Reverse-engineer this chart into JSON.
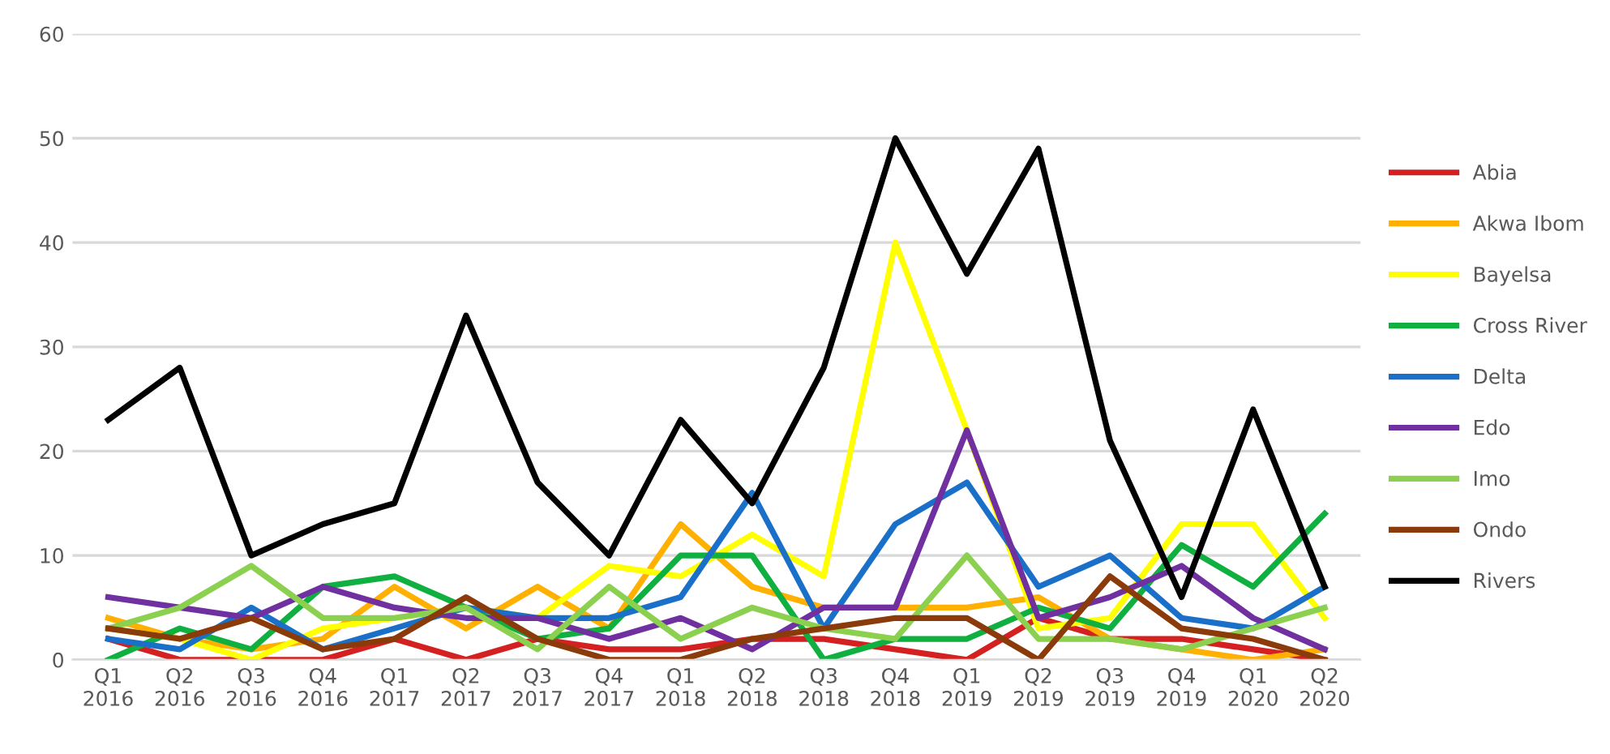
{
  "chart_data": {
    "type": "line",
    "categories": [
      "Q1\n2016",
      "Q2\n2016",
      "Q3\n2016",
      "Q4\n2016",
      "Q1\n2017",
      "Q2\n2017",
      "Q3\n2017",
      "Q4\n2017",
      "Q1\n2018",
      "Q2\n2018",
      "Q3\n2018",
      "Q4\n2018",
      "Q1\n2019",
      "Q2\n2019",
      "Q3\n2019",
      "Q4\n2019",
      "Q1\n2020",
      "Q2\n2020"
    ],
    "ylim": [
      0,
      60
    ],
    "yticks": [
      0,
      10,
      20,
      30,
      40,
      50,
      60
    ],
    "grid": "y",
    "legend": "right",
    "marker": "none",
    "line_style": "solid",
    "series": [
      {
        "name": "Abia",
        "color": "#d42020",
        "values": [
          2,
          0,
          0,
          0,
          2,
          0,
          2,
          1,
          1,
          2,
          2,
          1,
          0,
          4,
          2,
          2,
          1,
          0
        ]
      },
      {
        "name": "Akwa Ibom",
        "color": "#ffb000",
        "values": [
          4,
          2,
          1,
          2,
          7,
          3,
          7,
          3,
          13,
          7,
          5,
          5,
          5,
          6,
          2,
          1,
          0,
          1
        ]
      },
      {
        "name": "Bayelsa",
        "color": "#ffff00",
        "values": [
          3,
          2,
          0,
          3,
          4,
          5,
          4,
          9,
          8,
          12,
          8,
          40,
          22,
          3,
          4,
          13,
          13,
          4
        ]
      },
      {
        "name": "Cross River",
        "color": "#10b040",
        "values": [
          0,
          3,
          1,
          7,
          8,
          5,
          2,
          3,
          10,
          10,
          0,
          2,
          2,
          5,
          3,
          11,
          7,
          14
        ]
      },
      {
        "name": "Delta",
        "color": "#1a70c8",
        "values": [
          2,
          1,
          5,
          1,
          3,
          5,
          4,
          4,
          6,
          16,
          3,
          13,
          17,
          7,
          10,
          4,
          3,
          7
        ]
      },
      {
        "name": "Edo",
        "color": "#7030a0",
        "values": [
          6,
          5,
          4,
          7,
          5,
          4,
          4,
          2,
          4,
          1,
          5,
          5,
          22,
          4,
          6,
          9,
          4,
          1
        ]
      },
      {
        "name": "Imo",
        "color": "#8cd050",
        "values": [
          3,
          5,
          9,
          4,
          4,
          5,
          1,
          7,
          2,
          5,
          3,
          2,
          10,
          2,
          2,
          1,
          3,
          5
        ]
      },
      {
        "name": "Ondo",
        "color": "#8b3a0a",
        "values": [
          3,
          2,
          4,
          1,
          2,
          6,
          2,
          0,
          0,
          2,
          3,
          4,
          4,
          0,
          8,
          3,
          2,
          0
        ]
      },
      {
        "name": "Rivers",
        "color": "#000000",
        "values": [
          23,
          28,
          10,
          13,
          15,
          33,
          17,
          10,
          23,
          15,
          28,
          50,
          37,
          49,
          21,
          6,
          24,
          7
        ]
      }
    ]
  }
}
